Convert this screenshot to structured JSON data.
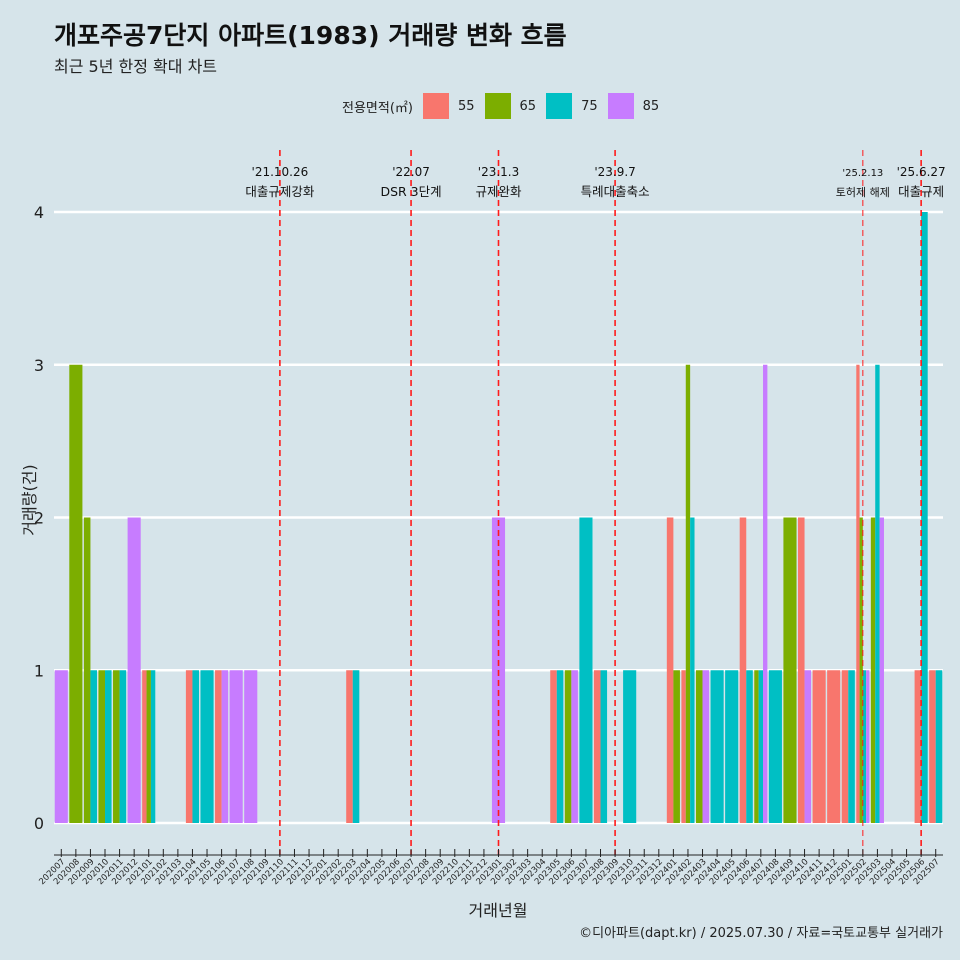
{
  "chart_data": {
    "type": "bar",
    "title": "개포주공7단지 아파트(1983) 거래량 변화 흐름",
    "subtitle": "최근 5년 한정 확대 차트",
    "xlabel": "거래년월",
    "ylabel": "거래량(건)",
    "legend_title": "전용면적(㎡)",
    "legend_position": "top",
    "grid": true,
    "ylim": [
      0,
      4
    ],
    "yticks": [
      "0",
      "1",
      "2",
      "3",
      "4"
    ],
    "categories": [
      "202007",
      "202008",
      "202009",
      "202010",
      "202011",
      "202012",
      "202101",
      "202102",
      "202103",
      "202104",
      "202105",
      "202106",
      "202107",
      "202108",
      "202109",
      "202110",
      "202111",
      "202112",
      "202201",
      "202202",
      "202203",
      "202204",
      "202205",
      "202206",
      "202207",
      "202208",
      "202209",
      "202210",
      "202211",
      "202212",
      "202301",
      "202302",
      "202303",
      "202304",
      "202305",
      "202306",
      "202307",
      "202308",
      "202309",
      "202310",
      "202311",
      "202312",
      "202401",
      "202402",
      "202403",
      "202404",
      "202405",
      "202406",
      "202407",
      "202408",
      "202409",
      "202410",
      "202411",
      "202412",
      "202501",
      "202502",
      "202503",
      "202504",
      "202505",
      "202506",
      "202507"
    ],
    "series": [
      {
        "name": "55",
        "color": "#F8766D",
        "values": [
          0,
          0,
          0,
          0,
          0,
          0,
          1,
          0,
          0,
          1,
          0,
          1,
          0,
          0,
          0,
          0,
          0,
          0,
          0,
          0,
          1,
          0,
          0,
          0,
          0,
          0,
          0,
          0,
          0,
          0,
          0,
          0,
          0,
          0,
          1,
          0,
          0,
          1,
          0,
          0,
          0,
          0,
          2,
          1,
          0,
          0,
          0,
          2,
          0,
          0,
          0,
          2,
          1,
          1,
          1,
          3,
          0,
          0,
          0,
          1,
          1
        ]
      },
      {
        "name": "65",
        "color": "#7CAE00",
        "values": [
          0,
          3,
          2,
          1,
          1,
          0,
          1,
          0,
          0,
          0,
          0,
          0,
          0,
          0,
          0,
          0,
          0,
          0,
          0,
          0,
          0,
          0,
          0,
          0,
          0,
          0,
          0,
          0,
          0,
          0,
          0,
          0,
          0,
          0,
          0,
          1,
          0,
          0,
          0,
          0,
          0,
          0,
          1,
          3,
          1,
          0,
          0,
          0,
          1,
          0,
          2,
          0,
          0,
          0,
          0,
          2,
          2,
          0,
          0,
          0,
          0
        ]
      },
      {
        "name": "75",
        "color": "#00BFC4",
        "values": [
          0,
          0,
          1,
          1,
          1,
          0,
          1,
          0,
          0,
          1,
          1,
          0,
          0,
          0,
          0,
          0,
          0,
          0,
          0,
          0,
          1,
          0,
          0,
          0,
          0,
          0,
          0,
          0,
          0,
          0,
          0,
          0,
          0,
          0,
          1,
          0,
          2,
          1,
          0,
          1,
          0,
          0,
          0,
          2,
          0,
          1,
          1,
          1,
          1,
          1,
          0,
          0,
          0,
          0,
          1,
          1,
          3,
          0,
          0,
          4,
          1
        ]
      },
      {
        "name": "85",
        "color": "#C77CFF",
        "values": [
          1,
          0,
          0,
          0,
          0,
          2,
          0,
          0,
          0,
          0,
          0,
          1,
          1,
          1,
          0,
          0,
          0,
          0,
          0,
          0,
          0,
          0,
          0,
          0,
          0,
          0,
          0,
          0,
          0,
          0,
          2,
          0,
          0,
          0,
          0,
          1,
          0,
          0,
          0,
          0,
          0,
          0,
          0,
          0,
          1,
          0,
          0,
          0,
          3,
          0,
          0,
          1,
          0,
          0,
          0,
          1,
          2,
          0,
          0,
          0,
          0
        ]
      }
    ],
    "annotations": [
      {
        "x": "202110",
        "date": "'21.10.26",
        "label": "대출규제강화"
      },
      {
        "x": "202207",
        "date": "'22.07",
        "label": "DSR 3단계"
      },
      {
        "x": "202301",
        "date": "'23.1.3",
        "label": "규제완화"
      },
      {
        "x": "202309",
        "date": "'23.9.7",
        "label": "특례대출축소"
      },
      {
        "x": "202502",
        "date": "'25.2.13",
        "label": "토허제 해제"
      },
      {
        "x": "202506",
        "date": "'25.6.27",
        "label": "대출규제"
      }
    ]
  },
  "caption": "©디아파트(dapt.kr) / 2025.07.30 / 자료=국토교통부 실거래가"
}
